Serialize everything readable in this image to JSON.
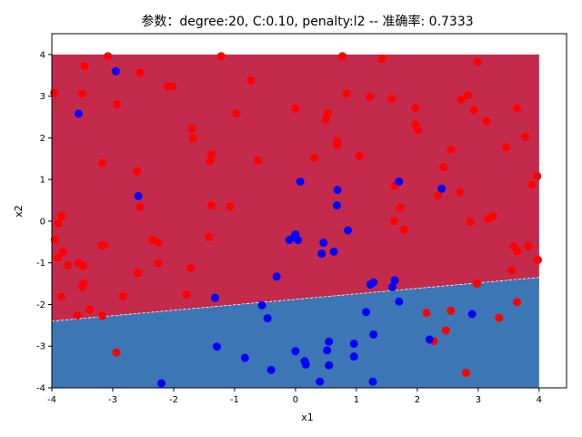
{
  "chart_data": {
    "type": "scatter",
    "title": "参数：degree:20, C:0.10, penalty:l2 -- 准确率: 0.7333",
    "xlabel": "x1",
    "ylabel": "x2",
    "xlim": [
      -4,
      4.45
    ],
    "ylim": [
      -4,
      4.5
    ],
    "xticks": [
      "-4",
      "-3",
      "-2",
      "-1",
      "0",
      "1",
      "2",
      "3",
      "4"
    ],
    "yticks": [
      "-4",
      "-3",
      "-2",
      "-1",
      "0",
      "1",
      "2",
      "3",
      "4"
    ],
    "grid": false,
    "regions": {
      "extent": {
        "x": [
          -4,
          4
        ],
        "y": [
          -4,
          4
        ]
      },
      "boundary": [
        [
          -4,
          -2.4
        ],
        [
          4,
          -1.35
        ]
      ],
      "upper_color": "#c42a4b",
      "lower_color": "#3d76b4"
    },
    "series": [
      {
        "color": "#ff0000",
        "points": [
          [
            -3.08,
            3.96
          ],
          [
            -1.22,
            3.96
          ],
          [
            0.77,
            3.96
          ],
          [
            1.42,
            3.9
          ],
          [
            -3.46,
            3.72
          ],
          [
            2.99,
            3.82
          ],
          [
            -2.55,
            3.56
          ],
          [
            -0.73,
            3.38
          ],
          [
            -2.1,
            3.24
          ],
          [
            -2.02,
            3.24
          ],
          [
            -3.96,
            3.08
          ],
          [
            -3.5,
            3.06
          ],
          [
            0.84,
            3.06
          ],
          [
            1.22,
            2.98
          ],
          [
            1.58,
            2.94
          ],
          [
            2.83,
            3.02
          ],
          [
            2.72,
            2.92
          ],
          [
            3.64,
            2.7
          ],
          [
            -2.93,
            2.8
          ],
          [
            0.0,
            2.7
          ],
          [
            0.53,
            2.59
          ],
          [
            0.5,
            2.44
          ],
          [
            1.97,
            2.72
          ],
          [
            2.93,
            2.67
          ],
          [
            3.14,
            2.4
          ],
          [
            -0.97,
            2.58
          ],
          [
            -1.7,
            2.22
          ],
          [
            -1.68,
            1.99
          ],
          [
            -1.38,
            1.6
          ],
          [
            -1.4,
            1.44
          ],
          [
            1.97,
            2.32
          ],
          [
            2.01,
            2.18
          ],
          [
            3.77,
            2.02
          ],
          [
            3.46,
            1.78
          ],
          [
            2.55,
            1.72
          ],
          [
            0.69,
            1.92
          ],
          [
            0.68,
            1.83
          ],
          [
            1.05,
            1.56
          ],
          [
            0.31,
            1.52
          ],
          [
            -0.62,
            1.46
          ],
          [
            -3.17,
            1.4
          ],
          [
            -2.6,
            1.2
          ],
          [
            2.43,
            1.3
          ],
          [
            3.97,
            1.08
          ],
          [
            3.88,
            0.88
          ],
          [
            1.63,
            0.85
          ],
          [
            2.34,
            0.62
          ],
          [
            2.7,
            0.7
          ],
          [
            -2.55,
            0.34
          ],
          [
            -1.38,
            0.38
          ],
          [
            -1.07,
            0.35
          ],
          [
            1.72,
            0.32
          ],
          [
            3.24,
            0.12
          ],
          [
            3.16,
            0.05
          ],
          [
            2.87,
            -0.01
          ],
          [
            1.62,
            0.0
          ],
          [
            1.78,
            -0.2
          ],
          [
            -3.84,
            0.12
          ],
          [
            -3.89,
            -0.05
          ],
          [
            -3.95,
            -0.44
          ],
          [
            -2.35,
            -0.45
          ],
          [
            -2.25,
            -0.52
          ],
          [
            -1.42,
            -0.38
          ],
          [
            -3.14,
            -0.58
          ],
          [
            -3.18,
            -0.58
          ],
          [
            -3.82,
            -0.74
          ],
          [
            -3.9,
            -0.87
          ],
          [
            -3.74,
            -1.06
          ],
          [
            -3.56,
            -1.0
          ],
          [
            -3.48,
            -1.08
          ],
          [
            -2.25,
            -1.01
          ],
          [
            -1.72,
            -1.12
          ],
          [
            -2.59,
            -1.24
          ],
          [
            3.58,
            -0.6
          ],
          [
            3.64,
            -0.72
          ],
          [
            3.82,
            -0.6
          ],
          [
            3.98,
            -0.93
          ],
          [
            3.55,
            -1.18
          ],
          [
            -3.48,
            -1.5
          ],
          [
            -3.5,
            -1.58
          ],
          [
            -3.84,
            -1.82
          ],
          [
            -2.83,
            -1.8
          ],
          [
            -1.79,
            -1.76
          ],
          [
            -3.38,
            -2.12
          ],
          [
            -3.17,
            -2.27
          ],
          [
            -3.58,
            -2.26
          ],
          [
            2.15,
            -2.2
          ],
          [
            2.55,
            -2.15
          ],
          [
            2.98,
            -1.5
          ],
          [
            3.64,
            -1.94
          ],
          [
            3.34,
            -2.32
          ],
          [
            2.47,
            -2.62
          ],
          [
            2.27,
            -2.88
          ],
          [
            -2.94,
            -3.15
          ],
          [
            2.8,
            -3.64
          ]
        ]
      },
      {
        "color": "#0000ff",
        "points": [
          [
            -2.95,
            3.6
          ],
          [
            -3.56,
            2.58
          ],
          [
            1.7,
            0.95
          ],
          [
            0.08,
            0.95
          ],
          [
            0.69,
            0.75
          ],
          [
            2.4,
            0.78
          ],
          [
            -2.58,
            0.6
          ],
          [
            0.68,
            0.38
          ],
          [
            0.86,
            -0.22
          ],
          [
            0.0,
            -0.32
          ],
          [
            -0.02,
            -0.38
          ],
          [
            0.04,
            -0.45
          ],
          [
            -0.1,
            -0.45
          ],
          [
            0.46,
            -0.52
          ],
          [
            0.63,
            -0.73
          ],
          [
            0.43,
            -0.78
          ],
          [
            -0.31,
            -1.33
          ],
          [
            1.63,
            -1.42
          ],
          [
            1.59,
            -1.58
          ],
          [
            1.28,
            -1.47
          ],
          [
            1.23,
            -1.52
          ],
          [
            1.7,
            -1.93
          ],
          [
            -1.32,
            -1.84
          ],
          [
            -0.55,
            -2.02
          ],
          [
            -0.46,
            -2.33
          ],
          [
            1.16,
            -2.18
          ],
          [
            2.9,
            -2.23
          ],
          [
            1.28,
            -2.72
          ],
          [
            2.2,
            -2.84
          ],
          [
            0.55,
            -2.89
          ],
          [
            0.96,
            -2.94
          ],
          [
            -1.29,
            -3.01
          ],
          [
            -0.0,
            -3.12
          ],
          [
            0.52,
            -3.1
          ],
          [
            0.96,
            -3.25
          ],
          [
            -0.83,
            -3.28
          ],
          [
            0.15,
            -3.36
          ],
          [
            0.17,
            -3.44
          ],
          [
            0.55,
            -3.46
          ],
          [
            -0.4,
            -3.57
          ],
          [
            -2.2,
            -3.89
          ],
          [
            0.4,
            -3.85
          ],
          [
            1.27,
            -3.85
          ]
        ]
      }
    ]
  }
}
